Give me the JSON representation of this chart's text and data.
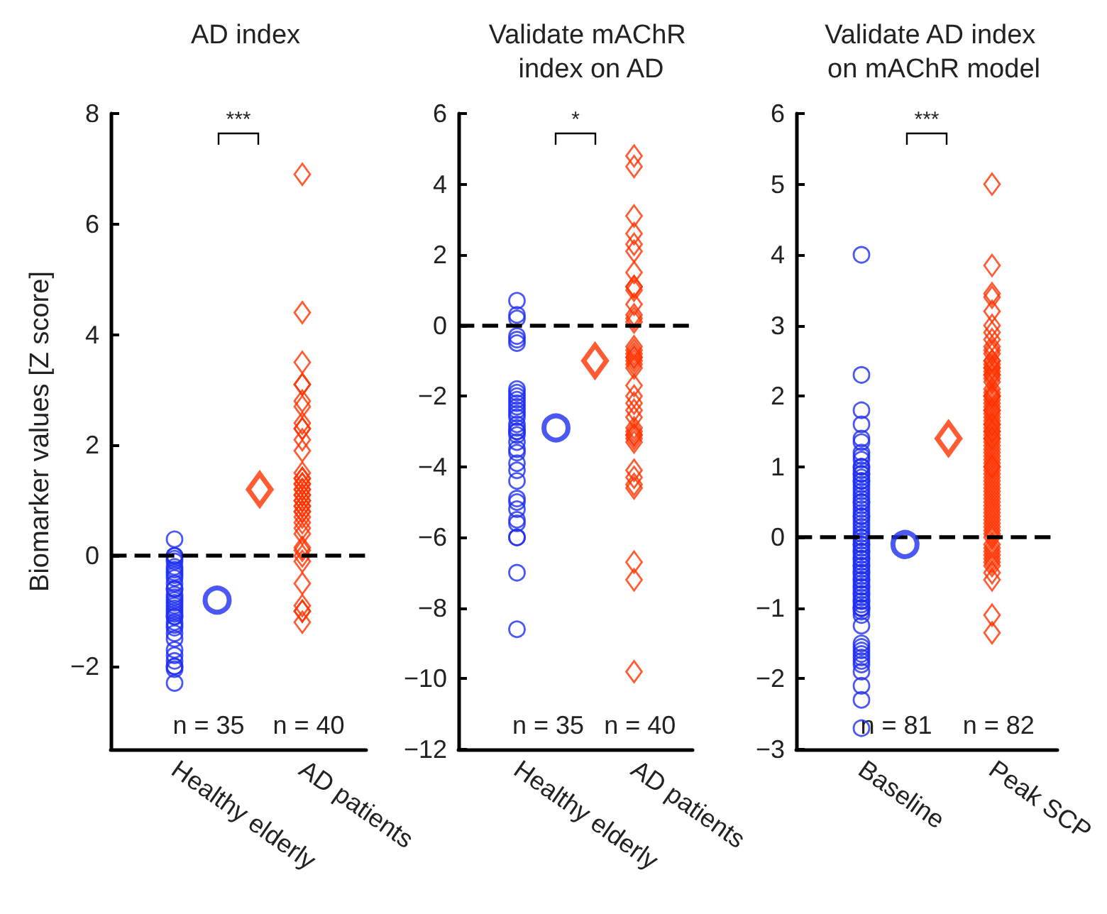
{
  "chart_data": [
    {
      "type": "scatter",
      "title": "AD index",
      "ylabel": "Biomarker values [Z score]",
      "categories": [
        null,
        "Healthy elderly",
        null,
        null,
        "AD patients",
        null
      ],
      "ylim": [
        -3.5,
        8
      ],
      "yticks": [
        -2,
        0,
        2,
        4,
        6,
        8
      ],
      "series": [
        {
          "color": "#1f2ef0",
          "marker": "circle",
          "x": [
            "Healthy elderly",
            "Healthy elderly",
            "Healthy elderly",
            "Healthy elderly",
            "Healthy elderly",
            "Healthy elderly",
            "Healthy elderly",
            "Healthy elderly",
            "Healthy elderly",
            "Healthy elderly",
            "Healthy elderly",
            "Healthy elderly",
            "Healthy elderly",
            "Healthy elderly",
            "Healthy elderly",
            "Healthy elderly",
            "Healthy elderly",
            "Healthy elderly",
            "Healthy elderly",
            "Healthy elderly",
            "Healthy elderly",
            "Healthy elderly",
            "Healthy elderly",
            "Healthy elderly",
            "Healthy elderly",
            "Healthy elderly",
            "Healthy elderly",
            "Healthy elderly",
            "Healthy elderly",
            "Healthy elderly",
            "Healthy elderly",
            "Healthy elderly",
            "Healthy elderly",
            "Healthy elderly",
            "Healthy elderly"
          ],
          "values": [
            0.3,
            0.0,
            -0.05,
            -0.1,
            -0.2,
            -0.25,
            -0.3,
            -0.4,
            -0.5,
            -0.6,
            -0.6,
            -0.7,
            -0.75,
            -0.8,
            -0.85,
            -0.9,
            -0.95,
            -1.0,
            -1.05,
            -1.1,
            -1.1,
            -1.2,
            -1.25,
            -1.3,
            -1.4,
            -1.5,
            -1.7,
            -1.8,
            -1.9,
            -2.0,
            -2.0,
            -2.05,
            -2.3,
            0.0,
            -0.35
          ]
        },
        {
          "color": "#ff3300",
          "marker": "diamond",
          "x": [
            "AD patients",
            "AD patients",
            "AD patients",
            "AD patients",
            "AD patients",
            "AD patients",
            "AD patients",
            "AD patients",
            "AD patients",
            "AD patients",
            "AD patients",
            "AD patients",
            "AD patients",
            "AD patients",
            "AD patients",
            "AD patients",
            "AD patients",
            "AD patients",
            "AD patients",
            "AD patients",
            "AD patients",
            "AD patients",
            "AD patients",
            "AD patients",
            "AD patients",
            "AD patients",
            "AD patients",
            "AD patients",
            "AD patients",
            "AD patients",
            "AD patients",
            "AD patients",
            "AD patients",
            "AD patients",
            "AD patients",
            "AD patients",
            "AD patients",
            "AD patients",
            "AD patients",
            "AD patients"
          ],
          "values": [
            6.9,
            4.4,
            3.5,
            3.1,
            3.1,
            2.8,
            2.7,
            2.4,
            2.3,
            2.3,
            2.1,
            1.9,
            1.5,
            1.4,
            1.4,
            1.3,
            1.3,
            1.2,
            1.2,
            1.1,
            1.0,
            1.0,
            0.9,
            0.9,
            0.8,
            0.8,
            0.7,
            0.6,
            0.5,
            0.4,
            0.15,
            0.1,
            0.0,
            -0.1,
            -0.5,
            -0.9,
            -1.0,
            -1.0,
            -1.2,
            1.1
          ]
        },
        {
          "color": "#1f2ef0",
          "marker": "circle",
          "values": [
            null,
            null,
            -0.8,
            null,
            null,
            null
          ]
        },
        {
          "color": "#ff3300",
          "marker": "diamond",
          "values": [
            null,
            null,
            null,
            1.2,
            null,
            null
          ]
        }
      ],
      "ref_lines": [
        {
          "axis": "y",
          "value": 0,
          "color": "#000000",
          "line_style": "dashed"
        }
      ],
      "annotations": [
        "***",
        "n = 35",
        "n = 40"
      ]
    },
    {
      "type": "scatter",
      "title": "Validate mAChR index on AD",
      "categories": [
        null,
        "Healthy elderly",
        null,
        null,
        "AD patients",
        null
      ],
      "ylim": [
        -12,
        6
      ],
      "yticks": [
        -12,
        -10,
        -8,
        -6,
        -4,
        -2,
        0,
        2,
        4,
        6
      ],
      "series": [
        {
          "color": "#1f2ef0",
          "marker": "circle",
          "x": [
            "Healthy elderly",
            "Healthy elderly",
            "Healthy elderly",
            "Healthy elderly",
            "Healthy elderly",
            "Healthy elderly",
            "Healthy elderly",
            "Healthy elderly",
            "Healthy elderly",
            "Healthy elderly",
            "Healthy elderly",
            "Healthy elderly",
            "Healthy elderly",
            "Healthy elderly",
            "Healthy elderly",
            "Healthy elderly",
            "Healthy elderly",
            "Healthy elderly",
            "Healthy elderly",
            "Healthy elderly",
            "Healthy elderly",
            "Healthy elderly",
            "Healthy elderly",
            "Healthy elderly",
            "Healthy elderly",
            "Healthy elderly",
            "Healthy elderly",
            "Healthy elderly",
            "Healthy elderly",
            "Healthy elderly",
            "Healthy elderly",
            "Healthy elderly",
            "Healthy elderly",
            "Healthy elderly",
            "Healthy elderly"
          ],
          "values": [
            0.7,
            0.3,
            0.2,
            -0.3,
            -0.4,
            -0.5,
            -1.8,
            -1.9,
            -2.0,
            -2.1,
            -2.3,
            -2.4,
            -2.5,
            -2.6,
            -2.8,
            -2.9,
            -3.0,
            -3.0,
            -3.1,
            -3.3,
            -3.5,
            -3.6,
            -3.9,
            -4.1,
            -4.4,
            -4.9,
            -5.0,
            -5.2,
            -5.5,
            -5.6,
            -6.0,
            -6.0,
            -7.0,
            -8.6,
            -2.2
          ]
        },
        {
          "color": "#ff3300",
          "marker": "diamond",
          "x": [
            "AD patients",
            "AD patients",
            "AD patients",
            "AD patients",
            "AD patients",
            "AD patients",
            "AD patients",
            "AD patients",
            "AD patients",
            "AD patients",
            "AD patients",
            "AD patients",
            "AD patients",
            "AD patients",
            "AD patients",
            "AD patients",
            "AD patients",
            "AD patients",
            "AD patients",
            "AD patients",
            "AD patients",
            "AD patients",
            "AD patients",
            "AD patients",
            "AD patients",
            "AD patients",
            "AD patients",
            "AD patients",
            "AD patients",
            "AD patients",
            "AD patients",
            "AD patients",
            "AD patients",
            "AD patients",
            "AD patients",
            "AD patients",
            "AD patients",
            "AD patients",
            "AD patients",
            "AD patients"
          ],
          "values": [
            4.8,
            4.5,
            3.1,
            2.6,
            2.3,
            2.1,
            1.5,
            1.1,
            1.0,
            1.1,
            0.6,
            0.2,
            0.1,
            -0.6,
            -0.8,
            -0.9,
            -1.0,
            -1.1,
            -1.2,
            -1.7,
            -2.0,
            -2.2,
            -2.4,
            -2.6,
            -2.9,
            -3.0,
            -3.1,
            -3.2,
            -3.3,
            -3.1,
            -4.1,
            -4.3,
            -4.5,
            -4.6,
            -6.7,
            -7.2,
            -9.8,
            -0.7,
            -0.9,
            0.3
          ]
        },
        {
          "color": "#1f2ef0",
          "marker": "circle",
          "values": [
            null,
            null,
            -2.9,
            null,
            null,
            null
          ]
        },
        {
          "color": "#ff3300",
          "marker": "diamond",
          "values": [
            null,
            null,
            null,
            -1.0,
            null,
            null
          ]
        }
      ],
      "ref_lines": [
        {
          "axis": "y",
          "value": 0,
          "color": "#000000",
          "line_style": "dashed"
        }
      ],
      "annotations": [
        "*",
        "n = 35",
        "n = 40"
      ]
    },
    {
      "type": "scatter",
      "title": "Validate AD index on mAChR model",
      "categories": [
        null,
        "Baseline",
        null,
        null,
        "Peak SCP",
        null
      ],
      "ylim": [
        -3,
        6
      ],
      "yticks": [
        -3,
        -2,
        -1,
        0,
        1,
        2,
        3,
        4,
        5,
        6
      ],
      "series": [
        {
          "color": "#1f2ef0",
          "marker": "circle",
          "x": [
            "Baseline",
            "Baseline",
            "Baseline",
            "Baseline",
            "Baseline",
            "Baseline",
            "Baseline",
            "Baseline",
            "Baseline",
            "Baseline",
            "Baseline",
            "Baseline",
            "Baseline",
            "Baseline",
            "Baseline",
            "Baseline",
            "Baseline",
            "Baseline",
            "Baseline",
            "Baseline",
            "Baseline",
            "Baseline",
            "Baseline",
            "Baseline",
            "Baseline",
            "Baseline",
            "Baseline",
            "Baseline",
            "Baseline",
            "Baseline",
            "Baseline",
            "Baseline",
            "Baseline",
            "Baseline",
            "Baseline",
            "Baseline",
            "Baseline",
            "Baseline",
            "Baseline",
            "Baseline",
            "Baseline",
            "Baseline",
            "Baseline",
            "Baseline",
            "Baseline",
            "Baseline",
            "Baseline",
            "Baseline",
            "Baseline",
            "Baseline",
            "Baseline",
            "Baseline",
            "Baseline",
            "Baseline",
            "Baseline",
            "Baseline",
            "Baseline",
            "Baseline",
            "Baseline",
            "Baseline",
            "Baseline",
            "Baseline",
            "Baseline",
            "Baseline",
            "Baseline",
            "Baseline",
            "Baseline",
            "Baseline",
            "Baseline",
            "Baseline",
            "Baseline",
            "Baseline",
            "Baseline",
            "Baseline",
            "Baseline",
            "Baseline",
            "Baseline",
            "Baseline",
            "Baseline",
            "Baseline",
            "Baseline"
          ],
          "values": [
            4.0,
            2.3,
            1.8,
            1.6,
            1.4,
            1.35,
            1.2,
            1.1,
            1.0,
            1.0,
            0.95,
            0.9,
            0.9,
            0.85,
            0.8,
            0.8,
            0.7,
            0.65,
            0.6,
            0.55,
            0.5,
            0.45,
            0.4,
            0.35,
            0.3,
            0.25,
            0.2,
            0.15,
            0.1,
            0.05,
            0.0,
            0.0,
            -0.05,
            -0.1,
            -0.1,
            -0.15,
            -0.2,
            -0.25,
            -0.3,
            -0.3,
            -0.35,
            -0.4,
            -0.45,
            -0.5,
            -0.5,
            -0.55,
            -0.6,
            -0.6,
            -0.65,
            -0.7,
            -0.7,
            -0.75,
            -0.8,
            -0.8,
            -0.85,
            -0.9,
            -0.9,
            -0.95,
            -1.0,
            -1.0,
            -1.0,
            -1.05,
            -1.1,
            -1.25,
            -1.5,
            -1.55,
            -1.6,
            -1.65,
            -1.7,
            -1.75,
            -1.8,
            -1.9,
            -2.1,
            -2.3,
            -2.7,
            0.3,
            0.5,
            -0.4,
            0.75,
            1.15,
            -0.2
          ]
        },
        {
          "color": "#ff3300",
          "marker": "diamond",
          "x": [
            "Peak SCP",
            "Peak SCP",
            "Peak SCP",
            "Peak SCP",
            "Peak SCP",
            "Peak SCP",
            "Peak SCP",
            "Peak SCP",
            "Peak SCP",
            "Peak SCP",
            "Peak SCP",
            "Peak SCP",
            "Peak SCP",
            "Peak SCP",
            "Peak SCP",
            "Peak SCP",
            "Peak SCP",
            "Peak SCP",
            "Peak SCP",
            "Peak SCP",
            "Peak SCP",
            "Peak SCP",
            "Peak SCP",
            "Peak SCP",
            "Peak SCP",
            "Peak SCP",
            "Peak SCP",
            "Peak SCP",
            "Peak SCP",
            "Peak SCP",
            "Peak SCP",
            "Peak SCP",
            "Peak SCP",
            "Peak SCP",
            "Peak SCP",
            "Peak SCP",
            "Peak SCP",
            "Peak SCP",
            "Peak SCP",
            "Peak SCP",
            "Peak SCP",
            "Peak SCP",
            "Peak SCP",
            "Peak SCP",
            "Peak SCP",
            "Peak SCP",
            "Peak SCP",
            "Peak SCP",
            "Peak SCP",
            "Peak SCP",
            "Peak SCP",
            "Peak SCP",
            "Peak SCP",
            "Peak SCP",
            "Peak SCP",
            "Peak SCP",
            "Peak SCP",
            "Peak SCP",
            "Peak SCP",
            "Peak SCP",
            "Peak SCP",
            "Peak SCP",
            "Peak SCP",
            "Peak SCP",
            "Peak SCP",
            "Peak SCP",
            "Peak SCP",
            "Peak SCP",
            "Peak SCP",
            "Peak SCP",
            "Peak SCP",
            "Peak SCP",
            "Peak SCP",
            "Peak SCP",
            "Peak SCP",
            "Peak SCP",
            "Peak SCP",
            "Peak SCP",
            "Peak SCP",
            "Peak SCP",
            "Peak SCP",
            "Peak SCP"
          ],
          "values": [
            5.0,
            3.85,
            3.45,
            3.4,
            3.2,
            3.0,
            2.9,
            2.8,
            2.7,
            2.65,
            2.6,
            2.5,
            2.5,
            2.45,
            2.4,
            2.4,
            2.35,
            2.3,
            2.3,
            2.25,
            2.2,
            2.1,
            2.05,
            2.0,
            2.0,
            1.95,
            1.9,
            1.85,
            1.8,
            1.75,
            1.7,
            1.65,
            1.6,
            1.55,
            1.5,
            1.5,
            1.45,
            1.4,
            1.4,
            1.35,
            1.3,
            1.25,
            1.2,
            1.15,
            1.1,
            1.05,
            1.0,
            1.0,
            0.95,
            0.9,
            0.85,
            0.8,
            0.75,
            0.7,
            0.65,
            0.6,
            0.55,
            0.5,
            0.45,
            0.4,
            0.35,
            0.3,
            0.25,
            0.2,
            0.15,
            0.1,
            0.05,
            0.0,
            -0.1,
            -0.15,
            -0.2,
            -0.25,
            -0.3,
            -0.35,
            -0.4,
            -0.5,
            -0.6,
            -1.1,
            -1.35,
            1.8,
            2.0,
            1.6
          ]
        },
        {
          "color": "#1f2ef0",
          "marker": "circle",
          "values": [
            null,
            null,
            -0.1,
            null,
            null,
            null
          ]
        },
        {
          "color": "#ff3300",
          "marker": "diamond",
          "values": [
            null,
            null,
            null,
            1.4,
            null,
            null
          ]
        }
      ],
      "ref_lines": [
        {
          "axis": "y",
          "value": 0,
          "color": "#000000",
          "line_style": "dashed"
        }
      ],
      "annotations": [
        "***",
        "n = 81",
        "n = 82"
      ]
    }
  ]
}
